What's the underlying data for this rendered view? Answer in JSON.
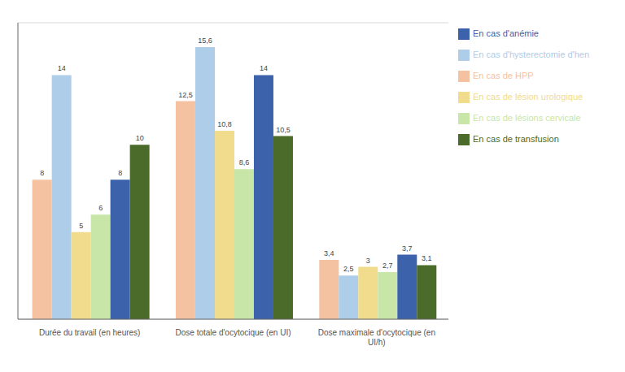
{
  "chart_data": {
    "type": "bar",
    "categories": [
      "Durée du travail (en heures)",
      "Dose totale d'ocytocique (en UI)",
      "Dose maximale d'ocytocique (en\nUI/h)"
    ],
    "series": [
      {
        "name": "En cas de HPP",
        "color": "#F4C2A1",
        "values": [
          8,
          12.5,
          3.4
        ],
        "value_labels": [
          "8",
          "12,5",
          "3,4"
        ]
      },
      {
        "name": "En cas d'hysterectomie d'hen",
        "color": "#AECDE8",
        "values": [
          14,
          15.6,
          2.5
        ],
        "value_labels": [
          "14",
          "15,6",
          "2,5"
        ]
      },
      {
        "name": "En cas de lésion urologique",
        "color": "#F0DC8C",
        "values": [
          5,
          10.8,
          3.0
        ],
        "value_labels": [
          "5",
          "10,8",
          "3"
        ]
      },
      {
        "name": "En cas de lésions cervicale",
        "color": "#C8E6A8",
        "values": [
          6,
          8.6,
          2.7
        ],
        "value_labels": [
          "6",
          "8,6",
          "2,7"
        ]
      },
      {
        "name": "En cas d'anémie",
        "color": "#3B62AA",
        "values": [
          8,
          14,
          3.7
        ],
        "value_labels": [
          "8",
          "14",
          "3,7"
        ]
      },
      {
        "name": "En cas de transfusion",
        "color": "#4A6B2A",
        "values": [
          10,
          10.5,
          3.1
        ],
        "value_labels": [
          "10",
          "10,5",
          "3,1"
        ]
      }
    ],
    "ylim": [
      0,
      17
    ],
    "yticks": [
      0,
      2,
      4,
      6,
      8,
      10,
      12,
      14,
      16
    ],
    "grid": true,
    "legend": "right",
    "data_labels": true,
    "tick_labels": "x"
  }
}
